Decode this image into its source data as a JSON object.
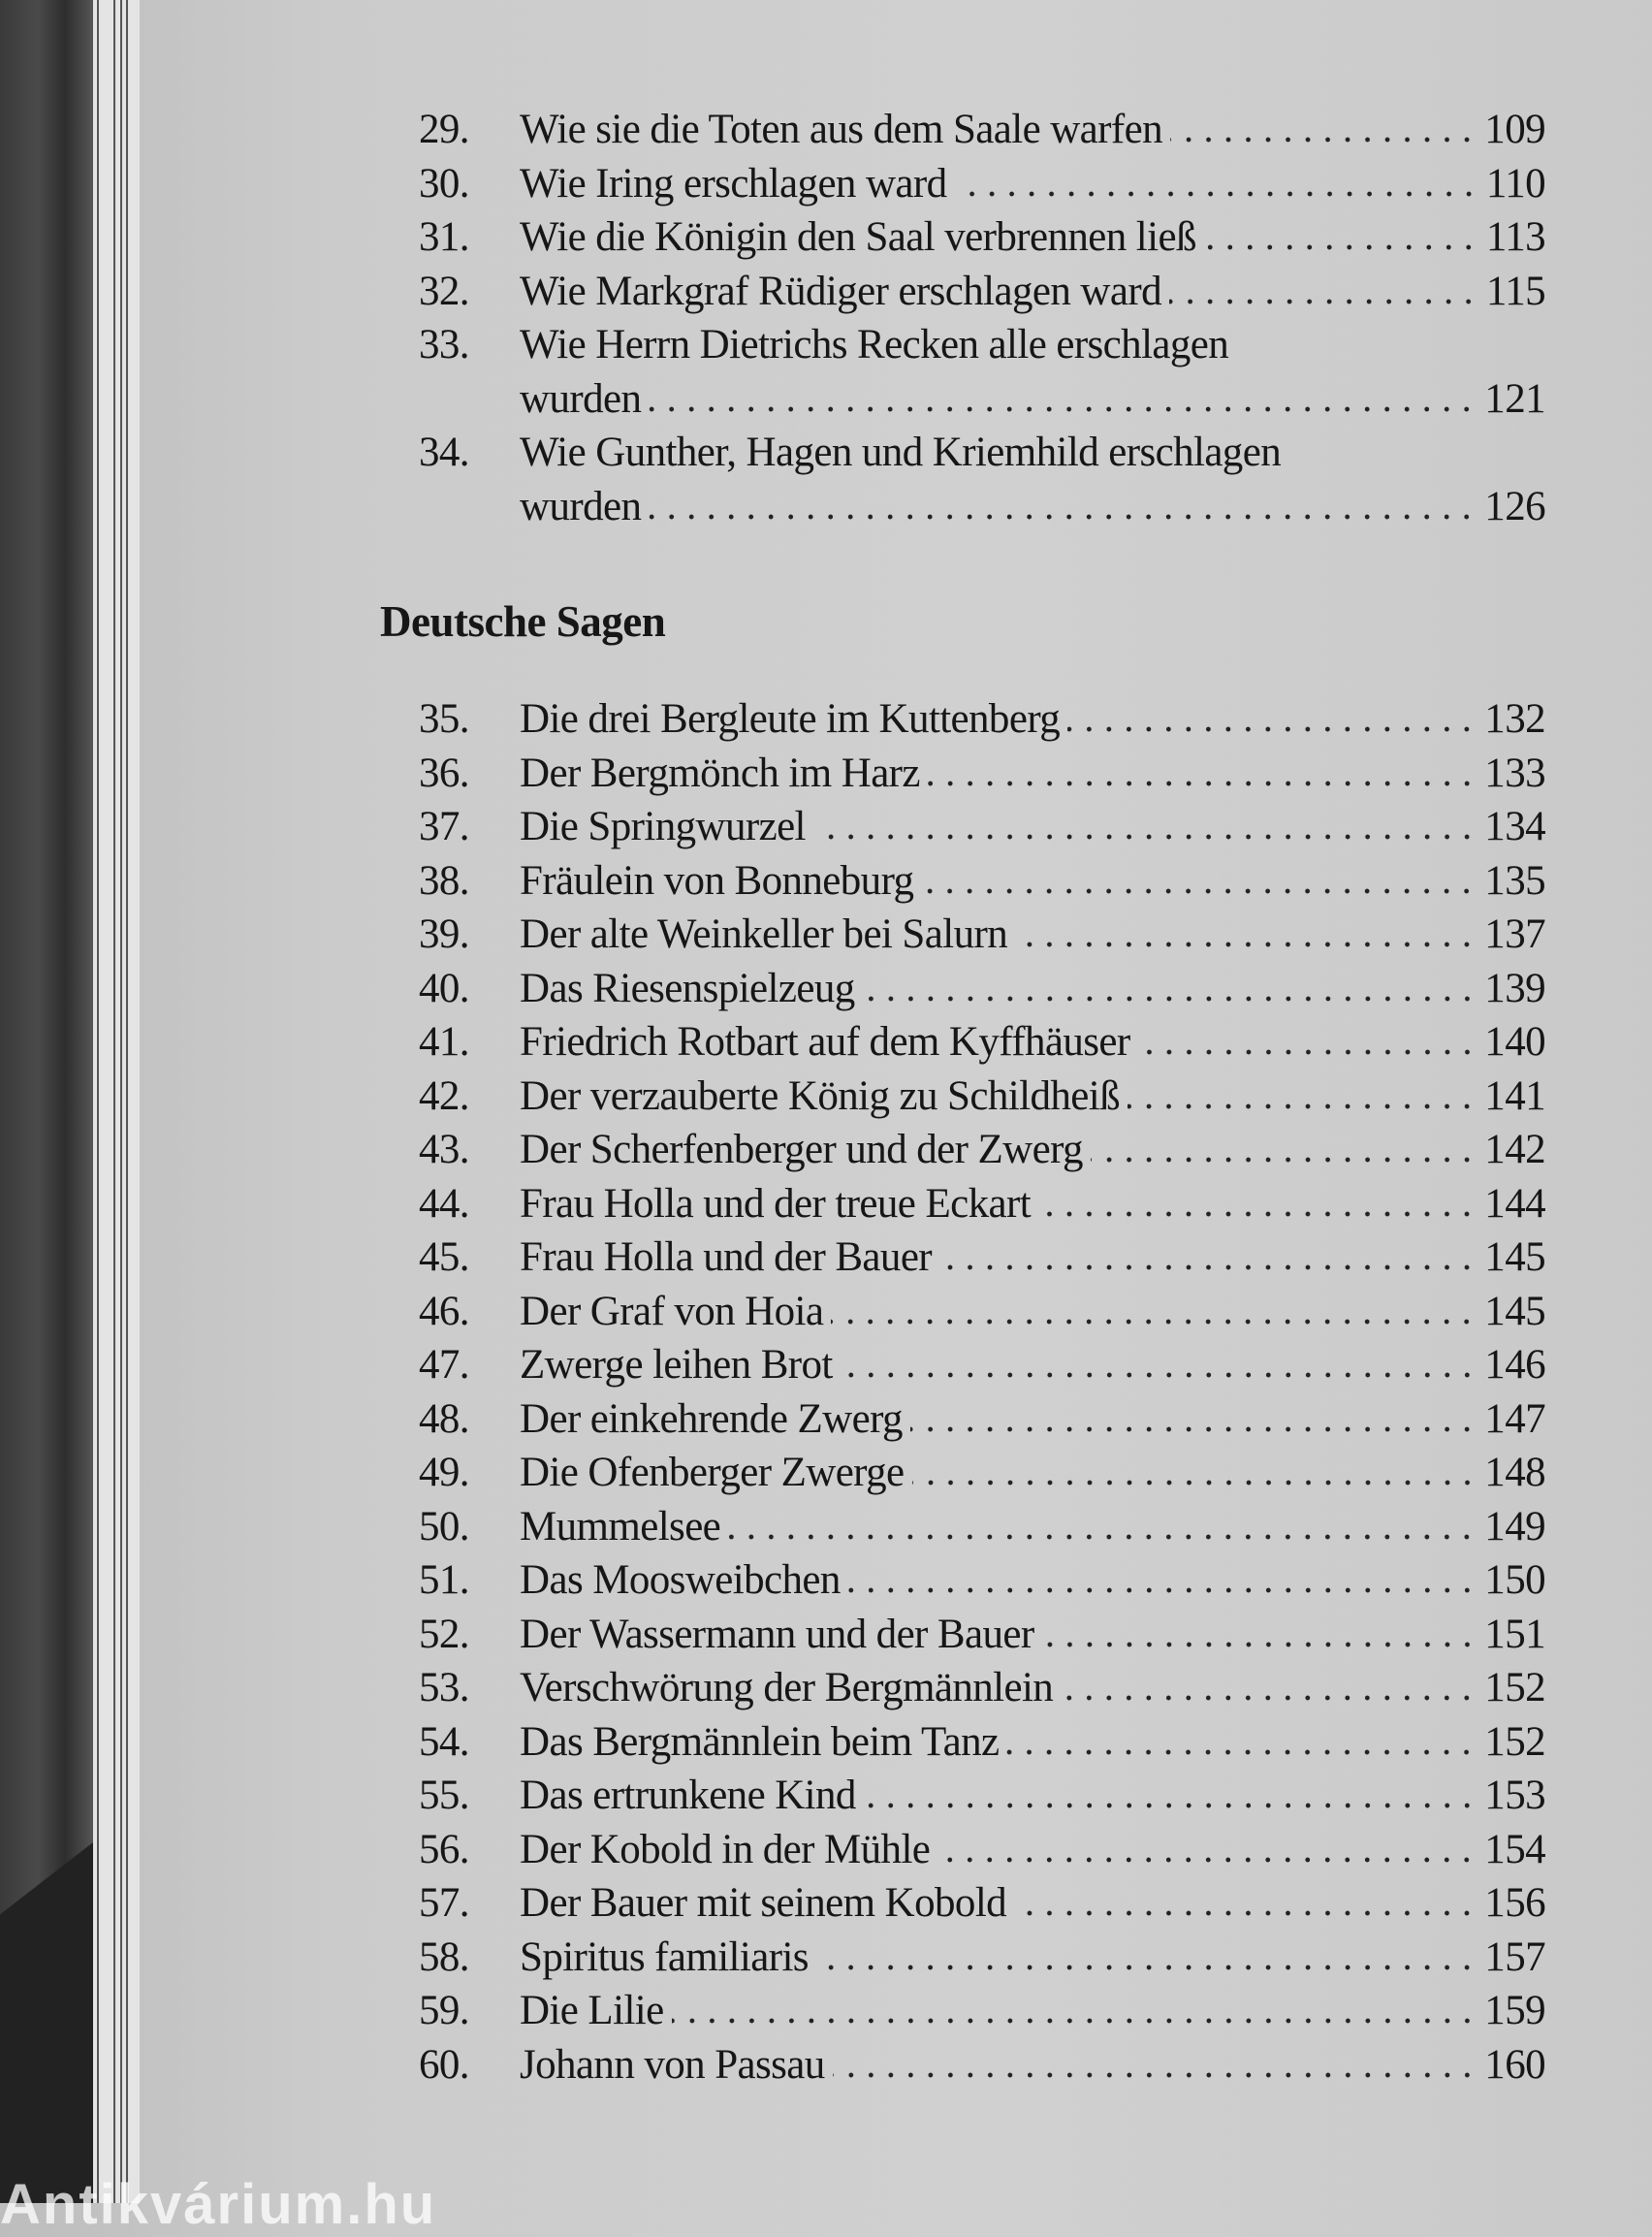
{
  "section1": {
    "entries": [
      {
        "num": "29.",
        "lines": [
          {
            "text": "Wie sie die Toten aus dem Saale warfen",
            "page": "109"
          }
        ]
      },
      {
        "num": "30.",
        "lines": [
          {
            "text": "Wie Iring erschlagen ward",
            "page": "110"
          }
        ]
      },
      {
        "num": "31.",
        "lines": [
          {
            "text": "Wie die Königin den Saal verbrennen ließ",
            "page": "113"
          }
        ]
      },
      {
        "num": "32.",
        "lines": [
          {
            "text": "Wie Markgraf Rüdiger erschlagen ward",
            "page": "115"
          }
        ]
      },
      {
        "num": "33.",
        "lines": [
          {
            "text": "Wie Herrn Dietrichs Recken alle erschlagen",
            "page": ""
          },
          {
            "text": "wurden",
            "page": "121"
          }
        ]
      },
      {
        "num": "34.",
        "lines": [
          {
            "text": "Wie Gunther, Hagen und Kriemhild erschlagen",
            "page": ""
          },
          {
            "text": "wurden",
            "page": "126"
          }
        ]
      }
    ]
  },
  "section2": {
    "heading": "Deutsche Sagen",
    "entries": [
      {
        "num": "35.",
        "lines": [
          {
            "text": "Die drei Bergleute im Kuttenberg",
            "page": "132"
          }
        ]
      },
      {
        "num": "36.",
        "lines": [
          {
            "text": "Der Bergmönch im Harz",
            "page": "133"
          }
        ]
      },
      {
        "num": "37.",
        "lines": [
          {
            "text": "Die Springwurzel",
            "page": "134"
          }
        ]
      },
      {
        "num": "38.",
        "lines": [
          {
            "text": "Fräulein von Bonneburg",
            "page": "135"
          }
        ]
      },
      {
        "num": "39.",
        "lines": [
          {
            "text": "Der alte Weinkeller bei Salurn",
            "page": "137"
          }
        ]
      },
      {
        "num": "40.",
        "lines": [
          {
            "text": "Das Riesenspielzeug",
            "page": "139"
          }
        ]
      },
      {
        "num": "41.",
        "lines": [
          {
            "text": "Friedrich Rotbart auf dem Kyffhäuser",
            "page": "140"
          }
        ]
      },
      {
        "num": "42.",
        "lines": [
          {
            "text": "Der verzauberte König zu Schildheiß",
            "page": "141"
          }
        ]
      },
      {
        "num": "43.",
        "lines": [
          {
            "text": "Der Scherfenberger und der Zwerg",
            "page": "142"
          }
        ]
      },
      {
        "num": "44.",
        "lines": [
          {
            "text": "Frau Holla und der treue Eckart",
            "page": "144"
          }
        ]
      },
      {
        "num": "45.",
        "lines": [
          {
            "text": "Frau Holla und der Bauer",
            "page": "145"
          }
        ]
      },
      {
        "num": "46.",
        "lines": [
          {
            "text": "Der Graf von Hoia",
            "page": "145"
          }
        ]
      },
      {
        "num": "47.",
        "lines": [
          {
            "text": "Zwerge leihen Brot",
            "page": "146"
          }
        ]
      },
      {
        "num": "48.",
        "lines": [
          {
            "text": "Der einkehrende Zwerg",
            "page": "147"
          }
        ]
      },
      {
        "num": "49.",
        "lines": [
          {
            "text": "Die Ofenberger Zwerge",
            "page": "148"
          }
        ]
      },
      {
        "num": "50.",
        "lines": [
          {
            "text": "Mummelsee",
            "page": "149"
          }
        ]
      },
      {
        "num": "51.",
        "lines": [
          {
            "text": "Das Moosweibchen",
            "page": "150"
          }
        ]
      },
      {
        "num": "52.",
        "lines": [
          {
            "text": "Der Wassermann und der Bauer",
            "page": "151"
          }
        ]
      },
      {
        "num": "53.",
        "lines": [
          {
            "text": "Verschwörung der Bergmännlein",
            "page": "152"
          }
        ]
      },
      {
        "num": "54.",
        "lines": [
          {
            "text": "Das Bergmännlein beim Tanz",
            "page": "152"
          }
        ]
      },
      {
        "num": "55.",
        "lines": [
          {
            "text": "Das ertrunkene Kind",
            "page": "153"
          }
        ]
      },
      {
        "num": "56.",
        "lines": [
          {
            "text": "Der Kobold in der Mühle",
            "page": "154"
          }
        ]
      },
      {
        "num": "57.",
        "lines": [
          {
            "text": "Der Bauer mit seinem Kobold",
            "page": "156"
          }
        ]
      },
      {
        "num": "58.",
        "lines": [
          {
            "text": "Spiritus familiaris",
            "page": "157"
          }
        ]
      },
      {
        "num": "59.",
        "lines": [
          {
            "text": "Die Lilie",
            "page": "159"
          }
        ]
      },
      {
        "num": "60.",
        "lines": [
          {
            "text": "Johann von Passau",
            "page": "160"
          }
        ]
      }
    ]
  },
  "watermark": "Antikvárium.hu"
}
